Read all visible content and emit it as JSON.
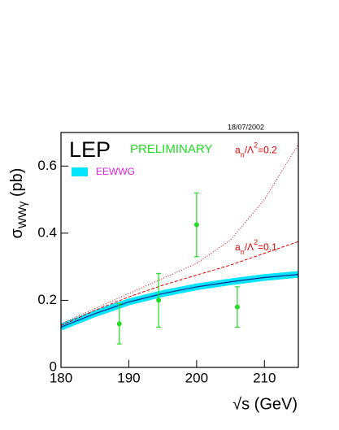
{
  "chart_data": {
    "type": "line",
    "date": "18/07/2002",
    "experiment": "LEP",
    "status": "PRELIMINARY",
    "x_label": "√s (GeV)",
    "y_label": [
      "σ",
      "WWγ",
      " (pb)"
    ],
    "xlim": [
      180,
      215
    ],
    "xticks": [
      180,
      190,
      200,
      210
    ],
    "ylim": [
      0,
      0.7
    ],
    "yticks": [
      0,
      0.2,
      0.4,
      0.6
    ],
    "x": [
      180,
      185,
      190,
      195,
      200,
      205,
      210,
      215
    ],
    "series": [
      {
        "name": "EEWWG",
        "color": "#00e5ff",
        "line_color": "#1a2a8c",
        "band_width": 0.02,
        "values": [
          0.12,
          0.16,
          0.195,
          0.22,
          0.24,
          0.255,
          0.268,
          0.277
        ]
      },
      {
        "label": [
          "a",
          "n",
          "/Λ",
          "2",
          "=0.1"
        ],
        "color": "#e00000",
        "dash": "4,2",
        "values": [
          0.125,
          0.17,
          0.21,
          0.245,
          0.275,
          0.305,
          0.34,
          0.375
        ]
      },
      {
        "label": [
          "a",
          "n",
          "/Λ",
          "2",
          "=0.2"
        ],
        "color": "#e00000",
        "dash": "1,2",
        "values": [
          0.13,
          0.175,
          0.22,
          0.265,
          0.31,
          0.38,
          0.5,
          0.665
        ]
      }
    ],
    "points": {
      "color": "#22dd22",
      "x": [
        188.6,
        194.4,
        200.0,
        206.0
      ],
      "values": [
        0.13,
        0.2,
        0.425,
        0.18
      ],
      "errors": [
        0.06,
        0.08,
        0.095,
        0.06
      ]
    }
  }
}
